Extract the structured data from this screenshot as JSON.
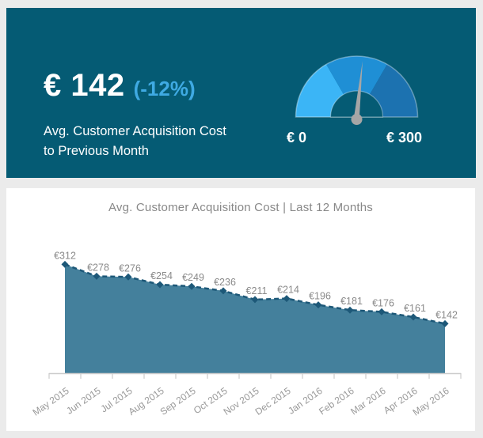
{
  "page": {
    "bg": "#EBEBEB"
  },
  "kpi_card": {
    "bg": "#055B74",
    "value_text": "€ 142",
    "delta_text": "(-12%)",
    "delta_color": "#3FAAE3",
    "subtitle_line1": "Avg. Customer Acquisition Cost",
    "subtitle_line2": "to Previous Month"
  },
  "chart_data": [
    {
      "type": "gauge",
      "title": "Avg. Customer Acquisition Cost to Previous Month",
      "value": 142,
      "delta_pct": -12,
      "min": 0,
      "max": 300,
      "currency": "€",
      "min_label": "€ 0",
      "max_label": "€ 300",
      "segment_colors": [
        "#3BB5F6",
        "#1F8FD5",
        "#1C72B0"
      ],
      "needle_color": "#A6A6A6"
    },
    {
      "type": "area",
      "title": "Avg. Customer Acquisition Cost | Last 12 Months",
      "categories": [
        "May 2015",
        "Jun 2015",
        "Jul 2015",
        "Aug 2015",
        "Sep 2015",
        "Oct 2015",
        "Nov 2015",
        "Dec 2015",
        "Jan 2016",
        "Feb 2016",
        "Mar 2016",
        "Apr 2016",
        "May 2016"
      ],
      "values": [
        312,
        278,
        276,
        254,
        249,
        236,
        211,
        214,
        196,
        181,
        176,
        161,
        142
      ],
      "unit": "€",
      "ylim": [
        0,
        340
      ],
      "line_style": "dashed",
      "marker": "diamond",
      "grid": false,
      "legend": "none",
      "colors": {
        "line": "#1D5878",
        "fill": "#44809C",
        "axis": "#CCCCCC",
        "label": "#8A8A8A",
        "tick_label": "#999999"
      }
    }
  ]
}
